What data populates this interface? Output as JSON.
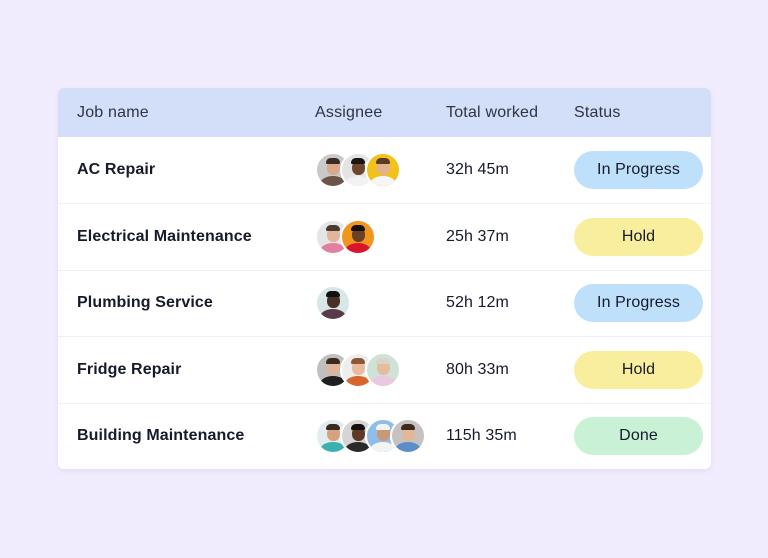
{
  "table": {
    "columns": [
      "Job name",
      "Assignee",
      "Total worked",
      "Status"
    ],
    "rows": [
      {
        "job": "AC Repair",
        "assignees": [
          {
            "bg": "#c9c9c9",
            "skin": "#d9a98a",
            "hair": "#3b2b22",
            "shirt": "#6b5548"
          },
          {
            "bg": "#e4e4e4",
            "skin": "#6e4630",
            "hair": "#1d1410",
            "shirt": "#f2f2f2"
          },
          {
            "bg": "#f2c21a",
            "skin": "#e2b290",
            "hair": "#5a3a24",
            "shirt": "#f6f6f6"
          }
        ],
        "total": "32h 45m",
        "status": "In Progress",
        "status_color": "#bfe0fb"
      },
      {
        "job": "Electrical Maintenance",
        "assignees": [
          {
            "bg": "#e5e5e5",
            "skin": "#e3b69a",
            "hair": "#4a3a30",
            "shirt": "#e27fa0"
          },
          {
            "bg": "#f0961f",
            "skin": "#6b4027",
            "hair": "#161010",
            "shirt": "#d8152f"
          }
        ],
        "total": "25h 37m",
        "status": "Hold",
        "status_color": "#f8ee9d"
      },
      {
        "job": "Plumbing Service",
        "assignees": [
          {
            "bg": "#d8e6e6",
            "skin": "#4a3024",
            "hair": "#111111",
            "shirt": "#5a3a4a"
          }
        ],
        "total": "52h 12m",
        "status": "In Progress",
        "status_color": "#bfe0fb"
      },
      {
        "job": "Fridge Repair",
        "assignees": [
          {
            "bg": "#bfbfbf",
            "skin": "#e0b49a",
            "hair": "#3d2a1f",
            "shirt": "#1f1f1f"
          },
          {
            "bg": "#eeeeee",
            "skin": "#e8bc9c",
            "hair": "#8a5a36",
            "shirt": "#d8642e"
          },
          {
            "bg": "#cfe2d8",
            "skin": "#e6bca0",
            "hair": "#d9d4c9",
            "shirt": "#e9c8e0"
          }
        ],
        "total": "80h 33m",
        "status": "Hold",
        "status_color": "#f8ee9d"
      },
      {
        "job": "Building Maintenance",
        "assignees": [
          {
            "bg": "#e3ecef",
            "skin": "#d8a27e",
            "hair": "#3a2a20",
            "shirt": "#3ab0b0"
          },
          {
            "bg": "#d5d5d5",
            "skin": "#5e3a26",
            "hair": "#151010",
            "shirt": "#2a2a2a"
          },
          {
            "bg": "#8fbfe8",
            "skin": "#c99a78",
            "hair": "#f4f4f4",
            "shirt": "#f4f4f4"
          },
          {
            "bg": "#c7c2c0",
            "skin": "#e2b898",
            "hair": "#3b2a20",
            "shirt": "#5a8ec9"
          }
        ],
        "total": "115h 35m",
        "status": "Done",
        "status_color": "#c9f1d6"
      }
    ]
  }
}
